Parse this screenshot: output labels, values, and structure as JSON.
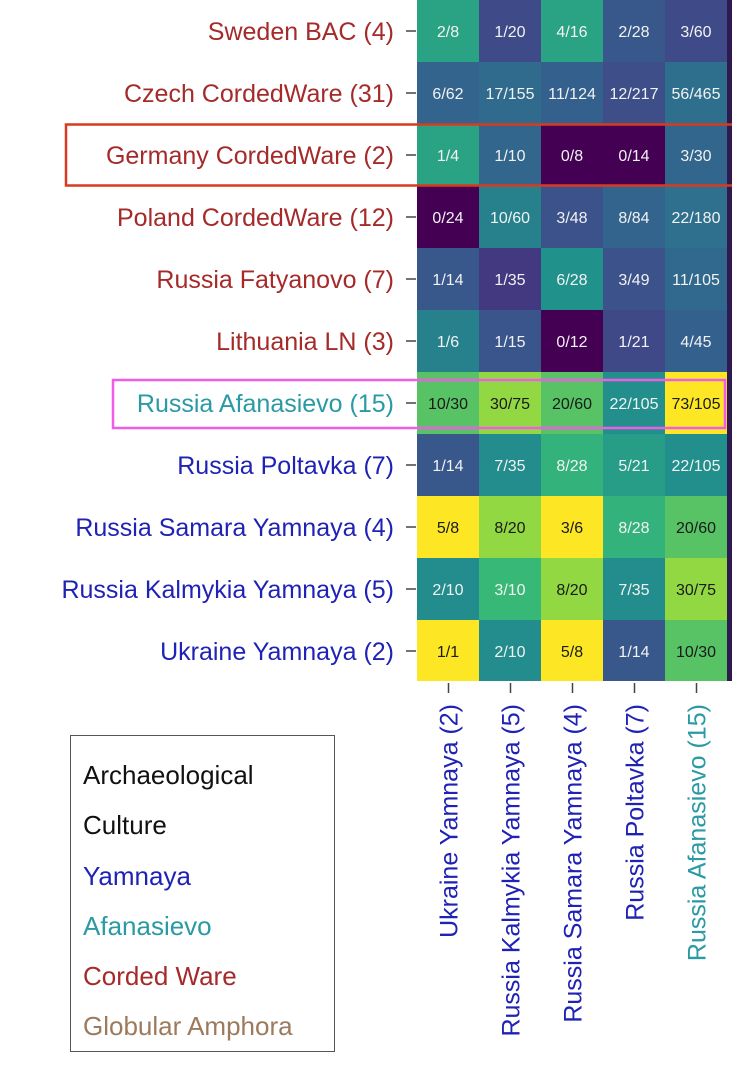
{
  "chart_data": {
    "type": "heatmap",
    "rows": [
      {
        "label": "Sweden BAC (4)",
        "group": "Corded Ware"
      },
      {
        "label": "Czech CordedWare (31)",
        "group": "Corded Ware"
      },
      {
        "label": "Germany CordedWare (2)",
        "group": "Corded Ware",
        "highlight": "red"
      },
      {
        "label": "Poland CordedWare (12)",
        "group": "Corded Ware"
      },
      {
        "label": "Russia Fatyanovo (7)",
        "group": "Corded Ware"
      },
      {
        "label": "Lithuania LN (3)",
        "group": "Corded Ware"
      },
      {
        "label": "Russia Afanasievo (15)",
        "group": "Afanasievo",
        "highlight": "magenta"
      },
      {
        "label": "Russia Poltavka (7)",
        "group": "Yamnaya"
      },
      {
        "label": "Russia Samara Yamnaya (4)",
        "group": "Yamnaya"
      },
      {
        "label": "Russia Kalmykia Yamnaya (5)",
        "group": "Yamnaya"
      },
      {
        "label": "Ukraine Yamnaya (2)",
        "group": "Yamnaya"
      }
    ],
    "columns": [
      {
        "label": "Ukraine Yamnaya (2)",
        "group": "Yamnaya"
      },
      {
        "label": "Russia Kalmykia Yamnaya (5)",
        "group": "Yamnaya"
      },
      {
        "label": "Russia Samara Yamnaya (4)",
        "group": "Yamnaya"
      },
      {
        "label": "Russia Poltavka (7)",
        "group": "Yamnaya"
      },
      {
        "label": "Russia Afanasievo (15)",
        "group": "Afanasievo"
      }
    ],
    "cells": [
      [
        "2/8",
        "1/20",
        "4/16",
        "2/28",
        "3/60"
      ],
      [
        "6/62",
        "17/155",
        "11/124",
        "12/217",
        "56/465"
      ],
      [
        "1/4",
        "1/10",
        "0/8",
        "0/14",
        "3/30"
      ],
      [
        "0/24",
        "10/60",
        "3/48",
        "8/84",
        "22/180"
      ],
      [
        "1/14",
        "1/35",
        "6/28",
        "3/49",
        "11/105"
      ],
      [
        "1/6",
        "1/15",
        "0/12",
        "1/21",
        "4/45"
      ],
      [
        "10/30",
        "30/75",
        "20/60",
        "22/105",
        "73/105"
      ],
      [
        "1/14",
        "7/35",
        "8/28",
        "5/21",
        "22/105"
      ],
      [
        "5/8",
        "8/20",
        "3/6",
        "8/28",
        "20/60"
      ],
      [
        "2/10",
        "3/10",
        "8/20",
        "7/35",
        "30/75"
      ],
      [
        "1/1",
        "2/10",
        "5/8",
        "1/14",
        "10/30"
      ]
    ],
    "colormap": "viridis",
    "legend_title": "Archaeological Culture"
  },
  "legend": {
    "title_line1": "Archaeological",
    "title_line2": "Culture",
    "items": [
      {
        "label": "Yamnaya",
        "color": "#1f22b4"
      },
      {
        "label": "Afanasievo",
        "color": "#2a9aa3"
      },
      {
        "label": "Corded Ware",
        "color": "#a52a2a"
      },
      {
        "label": "Globular Amphora",
        "color": "#9c7a5c"
      }
    ]
  },
  "colors": {
    "Yamnaya": "#1f22b4",
    "Afanasievo": "#2a9aa3",
    "Corded Ware": "#a52a2a",
    "Globular Amphora": "#9c7a5c",
    "highlight_red": "#d93a1f",
    "highlight_magenta": "#f05ce8",
    "tick": "#444444"
  }
}
